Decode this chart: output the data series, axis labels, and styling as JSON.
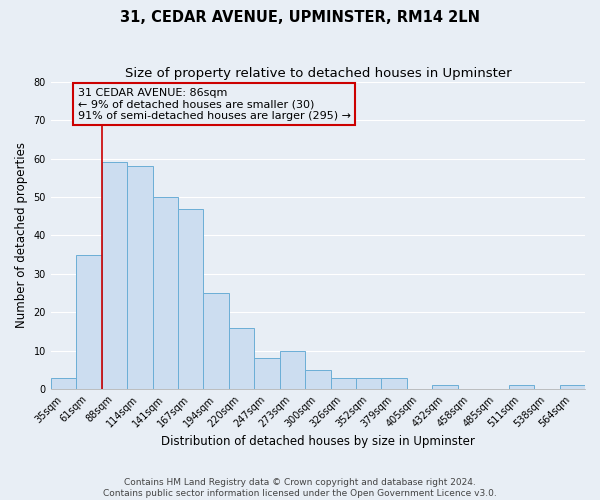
{
  "title": "31, CEDAR AVENUE, UPMINSTER, RM14 2LN",
  "subtitle": "Size of property relative to detached houses in Upminster",
  "xlabel": "Distribution of detached houses by size in Upminster",
  "ylabel": "Number of detached properties",
  "categories": [
    "35sqm",
    "61sqm",
    "88sqm",
    "114sqm",
    "141sqm",
    "167sqm",
    "194sqm",
    "220sqm",
    "247sqm",
    "273sqm",
    "300sqm",
    "326sqm",
    "352sqm",
    "379sqm",
    "405sqm",
    "432sqm",
    "458sqm",
    "485sqm",
    "511sqm",
    "538sqm",
    "564sqm"
  ],
  "values": [
    3,
    35,
    59,
    58,
    50,
    47,
    25,
    16,
    8,
    10,
    5,
    3,
    3,
    3,
    0,
    1,
    0,
    0,
    1,
    0,
    1
  ],
  "bar_color": "#ccddf0",
  "bar_edge_color": "#6baed6",
  "highlight_index": 2,
  "highlight_color": "#cc0000",
  "annotation_line1": "31 CEDAR AVENUE: 86sqm",
  "annotation_line2": "← 9% of detached houses are smaller (30)",
  "annotation_line3": "91% of semi-detached houses are larger (295) →",
  "annotation_box_edge": "#cc0000",
  "ylim": [
    0,
    80
  ],
  "yticks": [
    0,
    10,
    20,
    30,
    40,
    50,
    60,
    70,
    80
  ],
  "footer_line1": "Contains HM Land Registry data © Crown copyright and database right 2024.",
  "footer_line2": "Contains public sector information licensed under the Open Government Licence v3.0.",
  "bg_color": "#e8eef5",
  "grid_color": "#ffffff",
  "title_fontsize": 10.5,
  "subtitle_fontsize": 9.5,
  "axis_label_fontsize": 8.5,
  "tick_fontsize": 7,
  "annotation_fontsize": 8,
  "footer_fontsize": 6.5
}
